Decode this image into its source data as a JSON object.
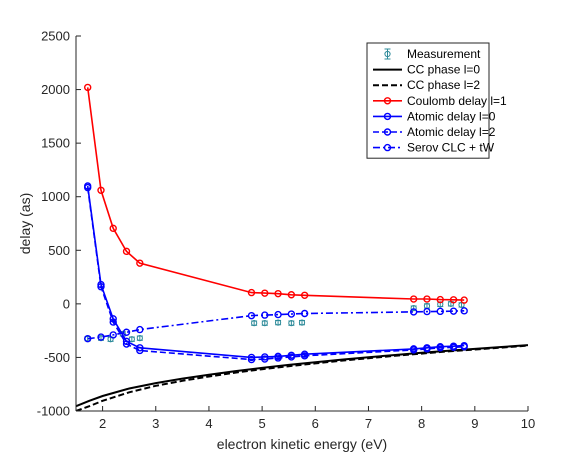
{
  "chart_data": {
    "type": "line",
    "title": "",
    "xlabel": "electron kinetic energy (eV)",
    "ylabel": "delay (as)",
    "xlim": [
      1.5,
      10
    ],
    "ylim": [
      -1000,
      2500
    ],
    "xticks": [
      2,
      3,
      4,
      5,
      6,
      7,
      8,
      9,
      10
    ],
    "yticks": [
      -1000,
      -500,
      0,
      500,
      1000,
      1500,
      2000,
      2500
    ],
    "grid": false,
    "legend_position": "top-right",
    "series": [
      {
        "name": "Measurement",
        "style": "errorbar",
        "color": "#2e8b9a",
        "x": [
          1.72,
          1.97,
          2.15,
          2.38,
          2.55,
          2.7,
          4.85,
          5.05,
          5.3,
          5.55,
          5.75,
          7.85,
          8.1,
          8.35,
          8.55,
          8.75
        ],
        "y": [
          -325,
          -320,
          -330,
          -280,
          -330,
          -320,
          -180,
          -180,
          -175,
          -180,
          -175,
          -40,
          -20,
          -5,
          0,
          -10
        ],
        "err": [
          20,
          20,
          20,
          20,
          20,
          20,
          20,
          20,
          20,
          20,
          20,
          20,
          20,
          20,
          20,
          20
        ]
      },
      {
        "name": "CC phase l=0",
        "style": "solid",
        "color": "#000000",
        "x": [
          1.5,
          1.75,
          2,
          2.5,
          3,
          3.5,
          4,
          4.5,
          5,
          5.5,
          6,
          6.5,
          7,
          7.5,
          8,
          8.5,
          9,
          9.5,
          10
        ],
        "y": [
          -955,
          -905,
          -860,
          -790,
          -740,
          -698,
          -662,
          -628,
          -598,
          -570,
          -545,
          -520,
          -498,
          -477,
          -457,
          -438,
          -420,
          -403,
          -385
        ]
      },
      {
        "name": "CC phase l=2",
        "style": "dashed",
        "color": "#000000",
        "x": [
          1.5,
          1.75,
          2,
          2.5,
          3,
          3.5,
          4,
          4.5,
          5,
          5.5,
          6,
          6.5,
          7,
          7.5,
          8,
          8.5,
          9,
          9.5,
          10
        ],
        "y": [
          -1000,
          -955,
          -905,
          -825,
          -765,
          -718,
          -678,
          -642,
          -610,
          -582,
          -556,
          -530,
          -507,
          -485,
          -464,
          -444,
          -426,
          -408,
          -390
        ]
      },
      {
        "name": "Coulomb delay l=1",
        "style": "solid-marker",
        "color": "#ff0000",
        "x": [
          1.72,
          1.97,
          2.2,
          2.45,
          2.7,
          4.8,
          5.05,
          5.3,
          5.55,
          5.8,
          7.85,
          8.1,
          8.35,
          8.6,
          8.8
        ],
        "y": [
          2020,
          1060,
          705,
          490,
          380,
          105,
          100,
          95,
          85,
          80,
          45,
          45,
          40,
          38,
          35
        ]
      },
      {
        "name": "Atomic delay l=0",
        "style": "solid-marker",
        "color": "#0000ff",
        "x": [
          1.72,
          1.97,
          2.2,
          2.45,
          2.7,
          4.8,
          5.05,
          5.3,
          5.55,
          5.8,
          7.85,
          8.1,
          8.35,
          8.6,
          8.8
        ],
        "y": [
          1100,
          180,
          -140,
          -350,
          -410,
          -500,
          -495,
          -490,
          -480,
          -470,
          -420,
          -410,
          -400,
          -395,
          -390
        ]
      },
      {
        "name": "Atomic delay l=2",
        "style": "dashed-marker",
        "color": "#0000ff",
        "x": [
          1.72,
          1.97,
          2.2,
          2.45,
          2.7,
          4.8,
          5.05,
          5.3,
          5.55,
          5.8,
          7.85,
          8.1,
          8.35,
          8.6,
          8.8
        ],
        "y": [
          1085,
          160,
          -170,
          -375,
          -435,
          -520,
          -515,
          -505,
          -495,
          -485,
          -430,
          -420,
          -410,
          -405,
          -400
        ]
      },
      {
        "name": "Serov CLC + tW",
        "style": "dashdot-marker",
        "color": "#0000ff",
        "x": [
          1.72,
          1.97,
          2.2,
          2.45,
          2.7,
          4.8,
          5.05,
          5.3,
          5.55,
          5.8,
          7.85,
          8.1,
          8.35,
          8.6,
          8.8
        ],
        "y": [
          -325,
          -310,
          -290,
          -265,
          -240,
          -110,
          -105,
          -100,
          -95,
          -90,
          -75,
          -72,
          -70,
          -68,
          -65
        ]
      }
    ]
  }
}
